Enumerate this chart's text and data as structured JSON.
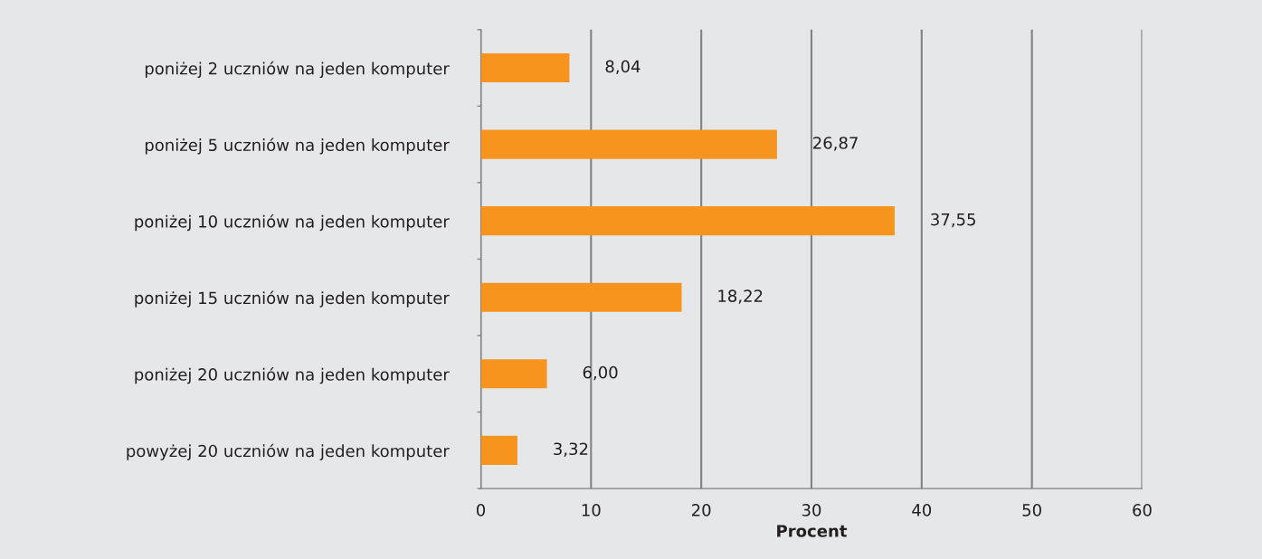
{
  "chart_data": {
    "type": "bar",
    "orientation": "horizontal",
    "xlabel": "Procent",
    "categories": [
      "poniżej 2 uczniów na jeden komputer",
      "poniżej 5 uczniów na jeden komputer",
      "poniżej 10 uczniów na jeden komputer",
      "poniżej 15 uczniów na jeden komputer",
      "poniżej 20 uczniów na jeden komputer",
      "powyżej 20 uczniów na jeden komputer"
    ],
    "values": [
      8.04,
      26.87,
      37.55,
      18.22,
      6.0,
      3.32
    ],
    "value_labels": [
      "8,04",
      "26,87",
      "37,55",
      "18,22",
      "6,00",
      "3,32"
    ],
    "color": "#f7941d",
    "xlim": [
      0,
      60
    ],
    "xticks": [
      0,
      10,
      20,
      30,
      40,
      50,
      60
    ],
    "grid": "x",
    "legend": false
  }
}
